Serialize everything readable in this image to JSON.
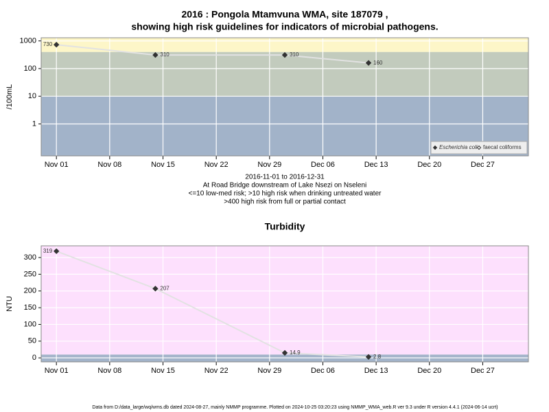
{
  "chart_data": [
    {
      "type": "line",
      "title": "2016 : Pongola Mtamvuna WMA, site 187079 ,",
      "subtitle": "showing high risk guidelines for indicators of microbial pathogens.",
      "ylabel": "/100mL",
      "log_y": true,
      "ylim": [
        0.07,
        1300
      ],
      "yticks": [
        1,
        10,
        100,
        1000
      ],
      "xlim": [
        "2016-10-30",
        "2017-01-02"
      ],
      "xticks": [
        {
          "value": "2016-11-01",
          "label": "Nov 01"
        },
        {
          "value": "2016-11-08",
          "label": "Nov 08"
        },
        {
          "value": "2016-11-15",
          "label": "Nov 15"
        },
        {
          "value": "2016-11-22",
          "label": "Nov 22"
        },
        {
          "value": "2016-11-29",
          "label": "Nov 29"
        },
        {
          "value": "2016-12-06",
          "label": "Dec 06"
        },
        {
          "value": "2016-12-13",
          "label": "Dec 13"
        },
        {
          "value": "2016-12-20",
          "label": "Dec 20"
        },
        {
          "value": "2016-12-27",
          "label": "Dec 27"
        }
      ],
      "thresholds": [
        10,
        400
      ],
      "band_colors": [
        "#a2b3c9",
        "#c2cbbd",
        "#fdf6c8"
      ],
      "grid": true,
      "legend": "lower right",
      "x": [
        "2016-11-01",
        "2016-11-14",
        "2016-12-01",
        "2016-12-12"
      ],
      "series": [
        {
          "name": "Escherichia coli",
          "color": "#333333",
          "marker": "filled",
          "values": [
            730,
            310,
            310,
            160
          ]
        },
        {
          "name": "faecal coliforms",
          "color": "#333333",
          "marker": "open",
          "values": [
            null,
            null,
            null,
            null
          ]
        }
      ],
      "notes": [
        "2016-11-01 to 2016-12-31",
        "At Road Bridge downstream of Lake Nsezi on Nseleni",
        "<=10 low-med risk; >10 high risk when drinking untreated water",
        ">400 high risk from full or partial contact"
      ]
    },
    {
      "type": "line",
      "title": "Turbidity",
      "ylabel": "NTU",
      "ylim": [
        -12,
        335
      ],
      "yticks": [
        0,
        50,
        100,
        150,
        200,
        250,
        300
      ],
      "xlim": [
        "2016-10-30",
        "2017-01-02"
      ],
      "xticks": [
        {
          "value": "2016-11-01",
          "label": "Nov 01"
        },
        {
          "value": "2016-11-08",
          "label": "Nov 08"
        },
        {
          "value": "2016-11-15",
          "label": "Nov 15"
        },
        {
          "value": "2016-11-22",
          "label": "Nov 22"
        },
        {
          "value": "2016-11-29",
          "label": "Nov 29"
        },
        {
          "value": "2016-12-06",
          "label": "Dec 06"
        },
        {
          "value": "2016-12-13",
          "label": "Dec 13"
        },
        {
          "value": "2016-12-20",
          "label": "Dec 20"
        },
        {
          "value": "2016-12-27",
          "label": "Dec 27"
        }
      ],
      "thresholds": [
        10
      ],
      "band_colors": [
        "#a2b3c9",
        "#fde0fd"
      ],
      "grid": true,
      "x": [
        "2016-11-01",
        "2016-11-14",
        "2016-12-01",
        "2016-12-12"
      ],
      "series": [
        {
          "name": "Turbidity",
          "color": "#333333",
          "marker": "filled",
          "values": [
            319,
            207,
            14.9,
            2.8
          ]
        }
      ]
    }
  ],
  "footer": "Data from D:/data_large/wq/wms.db dated 2024-08-27, mainly NMMP programme. Plotted on 2024-10-25 03:20:23 using NMMP_WMA_web.R ver 9.3 under R version 4.4.1 (2024-06-14 ucrt)"
}
